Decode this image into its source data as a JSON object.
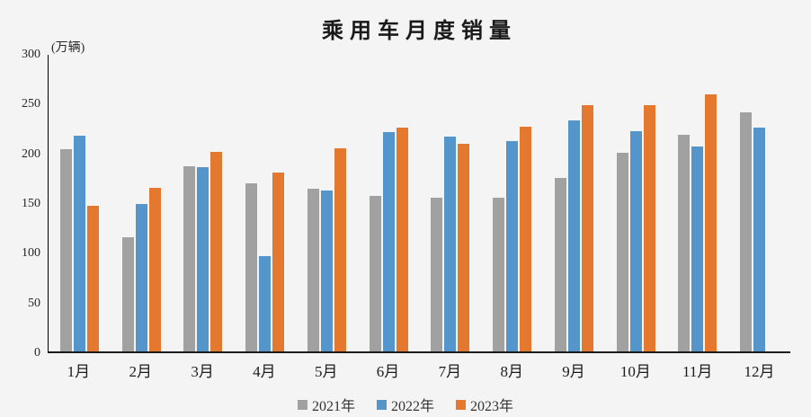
{
  "title": "乘用车月度销量",
  "unit_label": "(万辆)",
  "chart_data": {
    "type": "bar",
    "title": "乘用车月度销量",
    "ylabel": "(万辆)",
    "xlabel": "",
    "categories": [
      "1月",
      "2月",
      "3月",
      "4月",
      "5月",
      "6月",
      "7月",
      "8月",
      "9月",
      "10月",
      "11月",
      "12月"
    ],
    "series": [
      {
        "name": "2021年",
        "color": "#a1a1a1",
        "values": [
          204.5,
          115.5,
          187.4,
          170.4,
          164.6,
          156.9,
          155.1,
          155.2,
          175.1,
          200.7,
          219.2,
          242.2
        ]
      },
      {
        "name": "2022年",
        "color": "#5495cc",
        "values": [
          218.6,
          148.7,
          186.4,
          96.5,
          162.3,
          222.2,
          217.4,
          212.5,
          233.2,
          223.1,
          207.5,
          226.3
        ]
      },
      {
        "name": "2023年",
        "color": "#e4782e",
        "values": [
          146.9,
          165.3,
          201.7,
          181.1,
          205.1,
          226.8,
          210.0,
          227.5,
          248.9,
          249.0,
          260.4,
          null
        ]
      }
    ],
    "y_ticks": [
      0,
      50,
      100,
      150,
      200,
      250,
      300
    ],
    "ylim": [
      0,
      300
    ],
    "grid": false,
    "legend_position": "bottom",
    "background_color": "#f4f4f4"
  }
}
